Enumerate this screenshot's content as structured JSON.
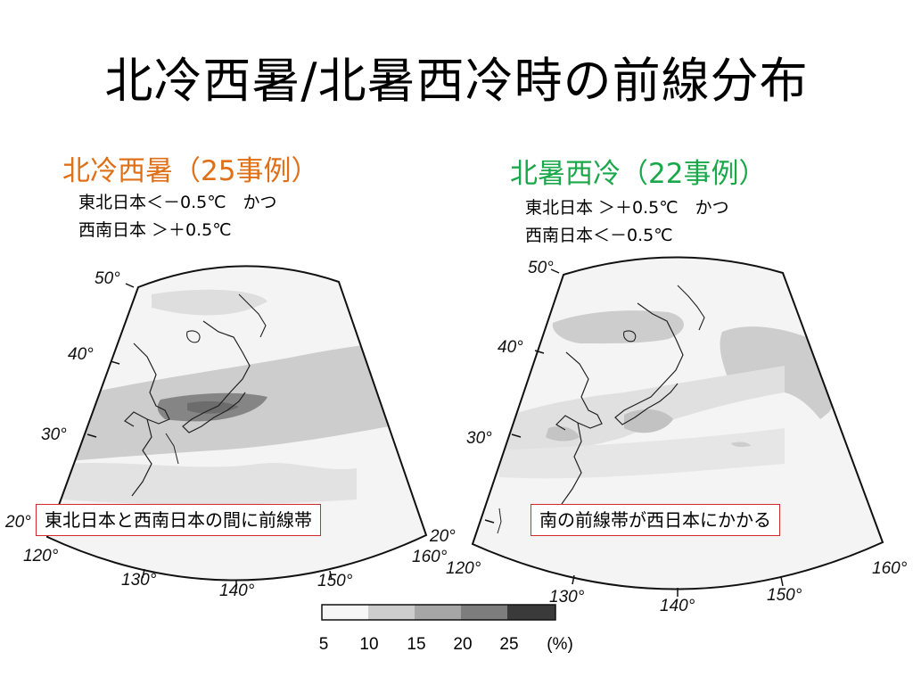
{
  "title": "北冷西暑/北暑西冷時の前線分布",
  "left_panel": {
    "heading": "北冷西暑（25事例）",
    "heading_color": "#e07018",
    "conditions": [
      "東北日本＜－0.5℃　かつ",
      "西南日本 ＞＋0.5℃"
    ],
    "lat_labels": [
      "50°",
      "40°",
      "30°",
      "20°"
    ],
    "lon_labels": [
      "120°",
      "130°",
      "140°",
      "150°",
      "160°"
    ],
    "callout": "東北日本と西南日本の間に前線帯",
    "callout_border": "#d02a2a"
  },
  "right_panel": {
    "heading": "北暑西冷（22事例）",
    "heading_color": "#1aa84a",
    "conditions": [
      "東北日本 ＞＋0.5℃　かつ",
      "西南日本＜－0.5℃"
    ],
    "lat_labels": [
      "50°",
      "40°",
      "30°",
      "20°"
    ],
    "lon_labels": [
      "120°",
      "130°",
      "140°",
      "150°",
      "160°"
    ],
    "callout": "南の前線帯が西日本にかかる",
    "callout_border": "#d02a2a"
  },
  "legend": {
    "ticks": [
      "5",
      "10",
      "15",
      "20",
      "25",
      "(%)"
    ],
    "colors": [
      "#f6f6f6",
      "#cdcdcd",
      "#a6a6a6",
      "#7d7d7d",
      "#3a3a3a"
    ]
  }
}
